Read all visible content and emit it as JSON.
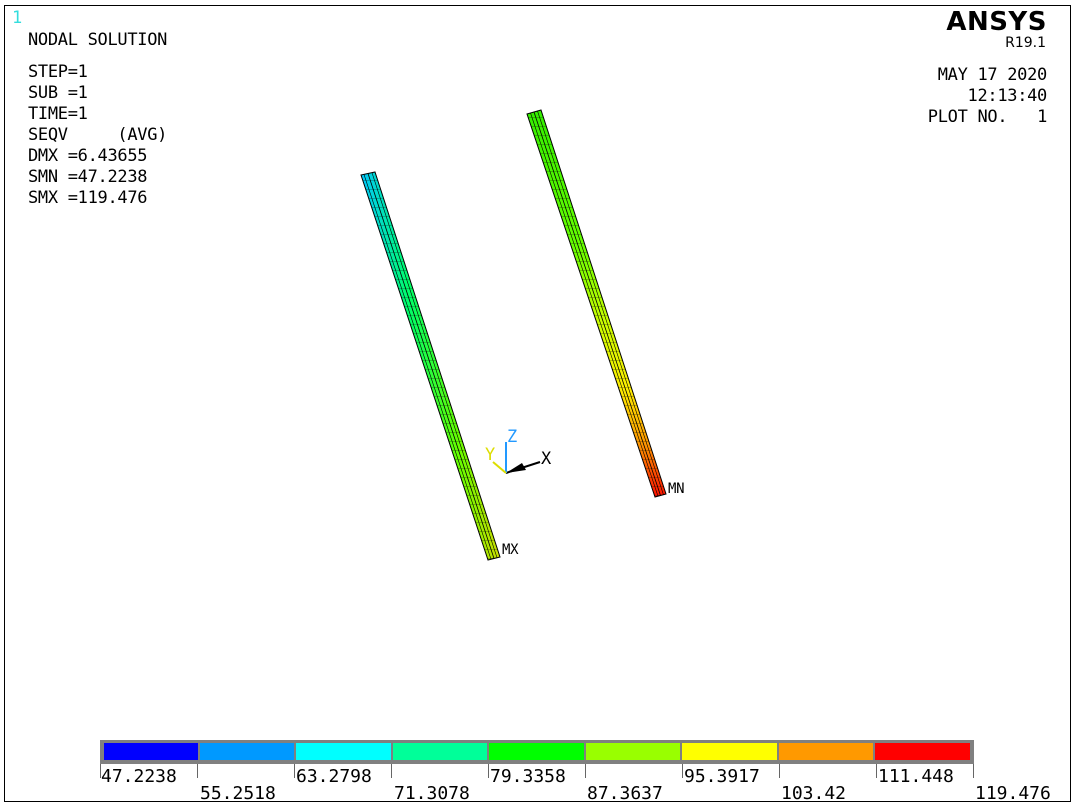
{
  "window_number": "1",
  "header": {
    "title": "NODAL SOLUTION",
    "brand": "ANSYS",
    "version": "R19.1"
  },
  "solution_info": [
    "STEP=1",
    "SUB =1",
    "TIME=1",
    "SEQV     (AVG)",
    "DMX =6.43655",
    "SMN =47.2238",
    "SMX =119.476"
  ],
  "plot_info": {
    "date": "MAY 17 2020",
    "time": "12:13:40",
    "plot_no": "PLOT NO.   1"
  },
  "markers": {
    "max_label": "MX",
    "min_label": "MN"
  },
  "triad": {
    "x_label": "X",
    "y_label": "Y",
    "z_label": "Z",
    "x_color": "#000000",
    "y_color": "#dddd00",
    "z_color": "#2299ff"
  },
  "legend": {
    "colors": [
      "#0000ff",
      "#0099ff",
      "#00ffff",
      "#00ff99",
      "#00ff00",
      "#99ff00",
      "#ffff00",
      "#ff9900",
      "#ff0000"
    ],
    "values_top": [
      "47.2238",
      "63.2798",
      "79.3358",
      "95.3917",
      "111.448"
    ],
    "values_bottom": [
      "55.2518",
      "71.3078",
      "87.3637",
      "103.42",
      "119.476"
    ]
  }
}
